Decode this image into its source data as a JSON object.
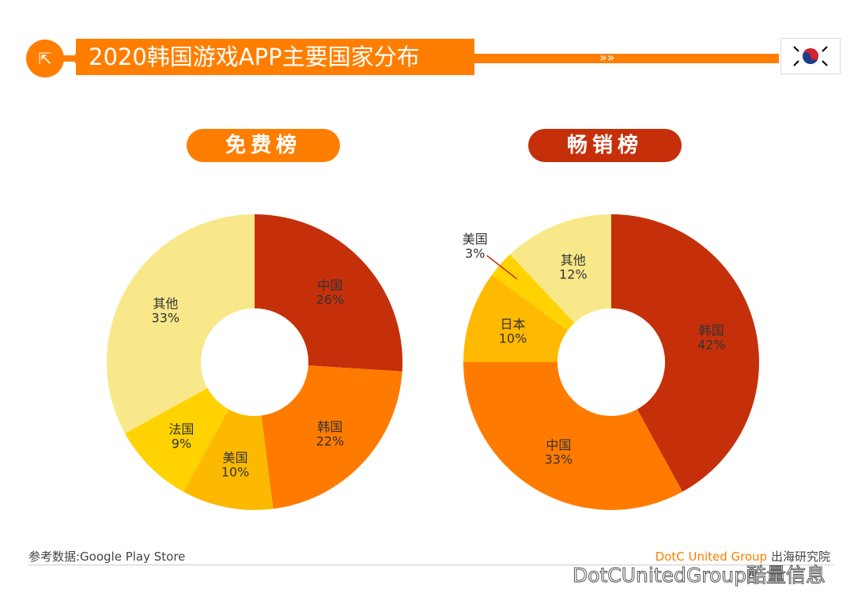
{
  "header": {
    "title": "2020韩国游戏APP主要国家分布",
    "icon": "external-link-icon",
    "flag": "south-korea-flag"
  },
  "footer": {
    "source": "参考数据:Google Play Store",
    "brand_en": "DotC United Group",
    "brand_cn": "出海研究院",
    "watermark": "DotCUnitedGroup酷量信息"
  },
  "colors": {
    "accent": "#ff7e00",
    "dark": "#c5300a"
  },
  "chart_data": [
    {
      "type": "pie",
      "title": "免费榜",
      "unit": "%",
      "categories": [
        "中国",
        "韩国",
        "美国",
        "法国",
        "其他"
      ],
      "values": [
        26,
        22,
        10,
        9,
        33
      ],
      "colors": [
        "#c5300a",
        "#ff7b00",
        "#fdb900",
        "#ffd200",
        "#f8e88a"
      ]
    },
    {
      "type": "pie",
      "title": "畅销榜",
      "unit": "%",
      "categories": [
        "韩国",
        "中国",
        "日本",
        "美国",
        "其他"
      ],
      "values": [
        42,
        33,
        10,
        3,
        12
      ],
      "colors": [
        "#c5300a",
        "#ff7b00",
        "#ffb900",
        "#ffd200",
        "#f8e88a"
      ]
    }
  ]
}
